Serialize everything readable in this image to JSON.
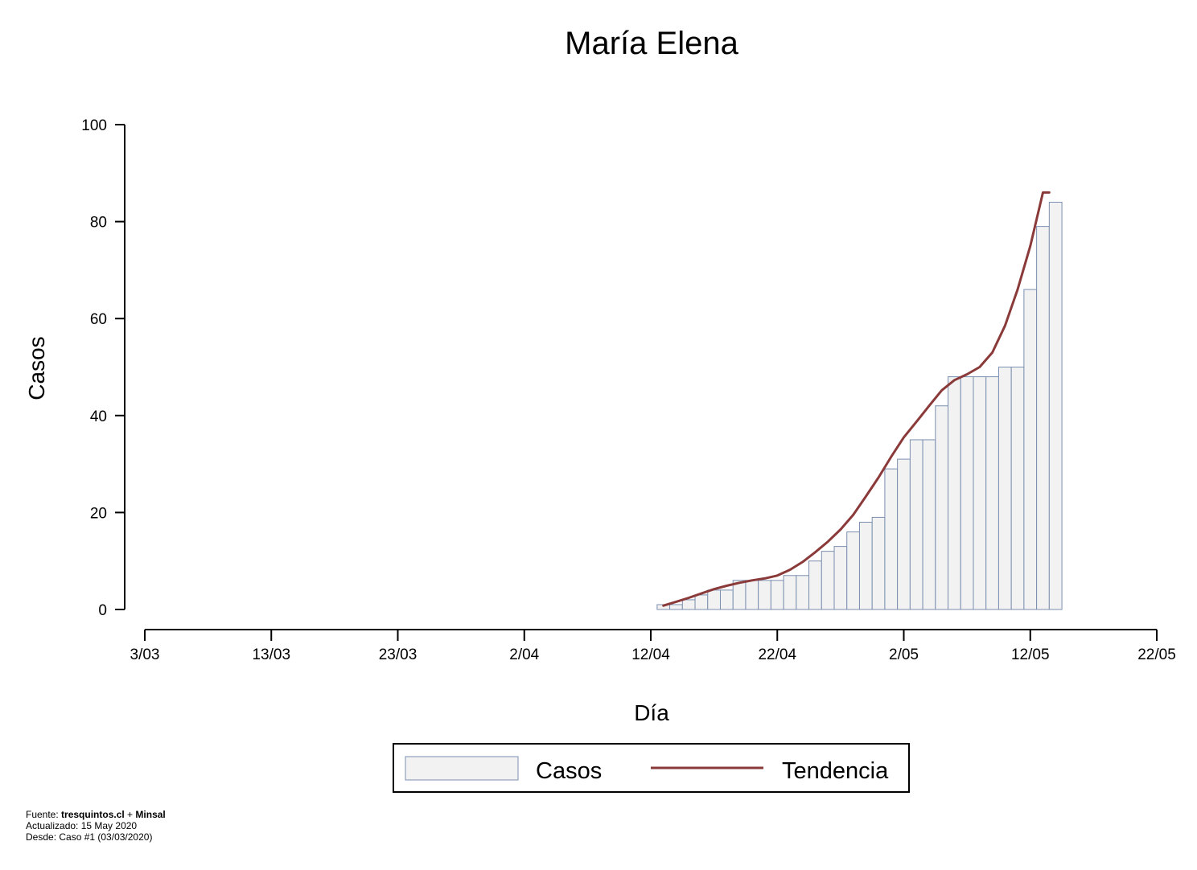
{
  "chart_data": {
    "type": "bar",
    "title": "María Elena",
    "xlabel": "Día",
    "ylabel": "Casos",
    "ylim": [
      0,
      100
    ],
    "yticks": [
      0,
      20,
      40,
      60,
      80,
      100
    ],
    "xlim": [
      "2020-03-03",
      "2020-05-22"
    ],
    "xticks": [
      {
        "date": "2020-03-03",
        "label": "3/03"
      },
      {
        "date": "2020-03-13",
        "label": "13/03"
      },
      {
        "date": "2020-03-23",
        "label": "23/03"
      },
      {
        "date": "2020-04-02",
        "label": "2/04"
      },
      {
        "date": "2020-04-12",
        "label": "12/04"
      },
      {
        "date": "2020-04-22",
        "label": "22/04"
      },
      {
        "date": "2020-05-02",
        "label": "2/05"
      },
      {
        "date": "2020-05-12",
        "label": "12/05"
      },
      {
        "date": "2020-05-22",
        "label": "22/05"
      }
    ],
    "grid": false,
    "legend_position": "bottom-center",
    "series": [
      {
        "name": "Casos",
        "type": "bar",
        "color": "#f2f2f2",
        "edge_color": "#7b8fb0",
        "x": [
          "2020-04-13",
          "2020-04-14",
          "2020-04-15",
          "2020-04-16",
          "2020-04-17",
          "2020-04-18",
          "2020-04-19",
          "2020-04-20",
          "2020-04-21",
          "2020-04-22",
          "2020-04-23",
          "2020-04-24",
          "2020-04-25",
          "2020-04-26",
          "2020-04-27",
          "2020-04-28",
          "2020-04-29",
          "2020-04-30",
          "2020-05-01",
          "2020-05-02",
          "2020-05-03",
          "2020-05-04",
          "2020-05-05",
          "2020-05-06",
          "2020-05-07",
          "2020-05-08",
          "2020-05-09",
          "2020-05-10",
          "2020-05-11",
          "2020-05-12",
          "2020-05-13",
          "2020-05-14"
        ],
        "values": [
          1,
          1,
          2,
          3,
          4,
          4,
          6,
          6,
          6,
          6,
          7,
          7,
          10,
          12,
          13,
          16,
          18,
          19,
          29,
          31,
          35,
          35,
          42,
          48,
          48,
          48,
          48,
          50,
          50,
          66,
          79,
          84
        ]
      },
      {
        "name": "Tendencia",
        "type": "line",
        "color": "#8b3a3a",
        "x": [
          "2020-04-13",
          "2020-04-14",
          "2020-04-15",
          "2020-04-16",
          "2020-04-17",
          "2020-04-18",
          "2020-04-19",
          "2020-04-20",
          "2020-04-21",
          "2020-04-22",
          "2020-04-23",
          "2020-04-24",
          "2020-04-25",
          "2020-04-26",
          "2020-04-27",
          "2020-04-28",
          "2020-04-29",
          "2020-04-30",
          "2020-05-01",
          "2020-05-02",
          "2020-05-03",
          "2020-05-04",
          "2020-05-05",
          "2020-05-06",
          "2020-05-07",
          "2020-05-08",
          "2020-05-09",
          "2020-05-10",
          "2020-05-11",
          "2020-05-12",
          "2020-05-13",
          "2020-05-14"
        ],
        "values": [
          0.8,
          1.6,
          2.4,
          3.3,
          4.2,
          4.9,
          5.5,
          6.0,
          6.4,
          7.0,
          8.2,
          9.8,
          11.8,
          14.0,
          16.5,
          19.5,
          23.3,
          27.2,
          31.5,
          35.5,
          38.7,
          42.0,
          45.2,
          47.3,
          48.5,
          50.0,
          53.0,
          58.5,
          66.0,
          75.0,
          86.0,
          86.0
        ]
      }
    ]
  },
  "footer": {
    "source_prefix": "Fuente: ",
    "source_a": "tresquintos.cl",
    "source_sep": " + ",
    "source_b": "Minsal",
    "updated": "Actualizado: 15 May 2020",
    "since": "Desde: Caso #1  (03/03/2020)"
  }
}
